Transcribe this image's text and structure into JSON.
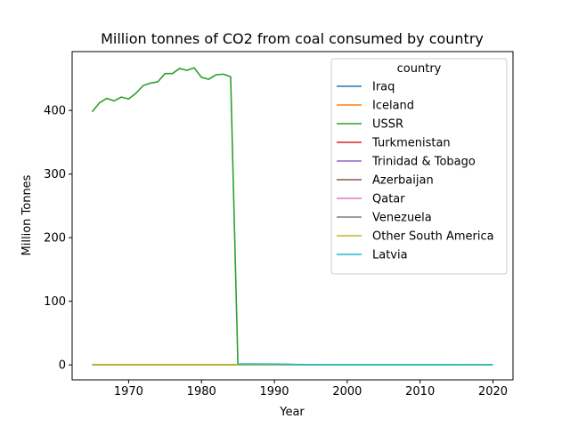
{
  "chart_data": {
    "type": "line",
    "title": "Million tonnes of CO2 from coal consumed by country",
    "xlabel": "Year",
    "ylabel": "Million Tonnes",
    "xlim": [
      1962.25,
      2022.75
    ],
    "ylim": [
      -23.5,
      492.5
    ],
    "xticks": [
      1970,
      1980,
      1990,
      2000,
      2010,
      2020
    ],
    "yticks": [
      0,
      100,
      200,
      300,
      400
    ],
    "grid": false,
    "legend": {
      "title": "country",
      "position": "top-right"
    },
    "x": [
      1965,
      1966,
      1967,
      1968,
      1969,
      1970,
      1971,
      1972,
      1973,
      1974,
      1975,
      1976,
      1977,
      1978,
      1979,
      1980,
      1981,
      1982,
      1983,
      1984,
      1985,
      1986,
      1987,
      1988,
      1989,
      1990,
      1991,
      1992,
      1993,
      1994,
      1995,
      1996,
      1997,
      1998,
      1999,
      2000,
      2001,
      2002,
      2003,
      2004,
      2005,
      2006,
      2007,
      2008,
      2009,
      2010,
      2011,
      2012,
      2013,
      2014,
      2015,
      2016,
      2017,
      2018,
      2019,
      2020
    ],
    "series": [
      {
        "name": "Iraq",
        "color": "#1f77b4",
        "values": [
          0,
          0,
          0,
          0,
          0,
          0,
          0,
          0,
          0,
          0,
          0,
          0,
          0,
          0,
          0,
          0,
          0,
          0,
          0,
          0,
          0,
          0,
          0,
          0,
          0,
          0,
          0,
          0,
          0,
          0,
          0,
          0,
          0,
          0,
          0,
          0,
          0,
          0,
          0,
          0,
          0,
          0,
          0,
          0,
          0,
          0,
          0,
          0,
          0,
          0,
          0,
          0,
          0,
          0,
          0,
          0
        ]
      },
      {
        "name": "Iceland",
        "color": "#ff7f0e",
        "values": [
          0,
          0,
          0,
          0,
          0,
          0,
          0,
          0,
          0,
          0,
          0,
          0,
          0,
          0,
          0,
          0,
          0,
          0,
          0,
          0,
          0,
          0,
          0,
          0,
          0,
          0,
          0,
          0,
          0,
          0,
          0,
          0,
          0,
          0,
          0,
          0,
          0,
          0,
          0,
          0,
          0,
          0,
          0,
          0,
          0,
          0,
          0,
          0,
          0,
          0,
          0,
          0,
          0,
          0,
          0,
          0
        ]
      },
      {
        "name": "USSR",
        "color": "#2ca02c",
        "values": [
          398,
          412,
          419,
          415,
          421,
          418,
          427,
          439,
          443,
          445,
          458,
          458,
          466,
          463,
          467,
          452,
          449,
          456,
          457,
          453,
          0
        ],
        "x": [
          1965,
          1966,
          1967,
          1968,
          1969,
          1970,
          1971,
          1972,
          1973,
          1974,
          1975,
          1976,
          1977,
          1978,
          1979,
          1980,
          1981,
          1982,
          1983,
          1984,
          1985
        ]
      },
      {
        "name": "Turkmenistan",
        "color": "#d62728",
        "values": [
          0,
          0,
          0,
          0,
          0,
          0,
          0,
          0,
          0,
          0,
          0,
          0,
          0,
          0,
          0,
          0,
          0,
          0,
          0,
          0,
          0,
          0,
          0,
          0,
          0,
          0,
          0,
          0,
          0,
          0,
          0,
          0,
          0,
          0,
          0,
          0,
          0,
          0,
          0,
          0,
          0,
          0,
          0,
          0,
          0,
          0,
          0,
          0,
          0,
          0,
          0,
          0,
          0,
          0,
          0,
          0
        ]
      },
      {
        "name": "Trinidad & Tobago",
        "color": "#9467bd",
        "values": [
          0,
          0,
          0,
          0,
          0,
          0,
          0,
          0,
          0,
          0,
          0,
          0,
          0,
          0,
          0,
          0,
          0,
          0,
          0,
          0,
          0,
          0,
          0,
          0,
          0,
          0,
          0,
          0,
          0,
          0,
          0,
          0,
          0,
          0,
          0,
          0,
          0,
          0,
          0,
          0,
          0,
          0,
          0,
          0,
          0,
          0,
          0,
          0,
          0,
          0,
          0,
          0,
          0,
          0,
          0,
          0
        ]
      },
      {
        "name": "Azerbaijan",
        "color": "#8c564b",
        "values": [
          0,
          0,
          0,
          0,
          0,
          0,
          0,
          0,
          0,
          0,
          0,
          0,
          0,
          0,
          0,
          0,
          0,
          0,
          0,
          0,
          0,
          0,
          0,
          0,
          0,
          0,
          0,
          0,
          0,
          0,
          0,
          0,
          0,
          0,
          0,
          0,
          0,
          0,
          0,
          0,
          0,
          0,
          0,
          0,
          0,
          0,
          0,
          0,
          0,
          0,
          0,
          0,
          0,
          0,
          0,
          0
        ]
      },
      {
        "name": "Qatar",
        "color": "#e377c2",
        "values": [
          0,
          0,
          0,
          0,
          0,
          0,
          0,
          0,
          0,
          0,
          0,
          0,
          0,
          0,
          0,
          0,
          0,
          0,
          0,
          0,
          0,
          0,
          0,
          0,
          0,
          0,
          0,
          0,
          0,
          0,
          0,
          0,
          0,
          0,
          0,
          0,
          0,
          0,
          0,
          0,
          0,
          0,
          0,
          0,
          0,
          0,
          0,
          0,
          0,
          0,
          0,
          0,
          0,
          0,
          0,
          0
        ]
      },
      {
        "name": "Venezuela",
        "color": "#7f7f7f",
        "values": [
          0.2,
          0.2,
          0.2,
          0.2,
          0.2,
          0.2,
          0.2,
          0.2,
          0.2,
          0.2,
          0.2,
          0.2,
          0.2,
          0.2,
          0.2,
          0.2,
          0.2,
          0.2,
          0.2,
          0.2,
          0.3,
          0.3,
          0.3,
          0.3,
          0.3,
          0.3,
          0.3,
          0.3,
          0.3,
          0.3,
          0.3,
          0.3,
          0.3,
          0.3,
          0.3,
          0.3,
          0.3,
          0.3,
          0.3,
          0.3,
          0.3,
          0.3,
          0.3,
          0.3,
          0.3,
          0.3,
          0.3,
          0.3,
          0.3,
          0.3,
          0.2,
          0.2,
          0.2,
          0.2,
          0.2,
          0.2
        ]
      },
      {
        "name": "Other South America",
        "color": "#bcbd22",
        "values": [
          0.3,
          0.3,
          0.3,
          0.3,
          0.3,
          0.3,
          0.3,
          0.3,
          0.3,
          0.3,
          0.3,
          0.3,
          0.3,
          0.3,
          0.3,
          0.3,
          0.3,
          0.3,
          0.3,
          0.3,
          0.3,
          0.3,
          0.3,
          0.3,
          0.3,
          0.3,
          0.3,
          0.3,
          0.3,
          0.3,
          0.3,
          0.3,
          0.3,
          0.3,
          0.3,
          0.3,
          0.3,
          0.3,
          0.3,
          0.3,
          0.3,
          0.3,
          0.3,
          0.3,
          0.3,
          0.3,
          0.3,
          0.3,
          0.3,
          0.3,
          0.3,
          0.3,
          0.3,
          0.3,
          0.3,
          0.3
        ]
      },
      {
        "name": "Latvia",
        "color": "#17becf",
        "values": [
          null,
          null,
          null,
          null,
          null,
          null,
          null,
          null,
          null,
          null,
          null,
          null,
          null,
          null,
          null,
          null,
          null,
          null,
          null,
          null,
          1.5,
          1.6,
          1.6,
          1.5,
          1.5,
          1.4,
          1.2,
          1.0,
          0.8,
          0.6,
          0.5,
          0.5,
          0.4,
          0.3,
          0.3,
          0.2,
          0.2,
          0.2,
          0.2,
          0.2,
          0.2,
          0.2,
          0.2,
          0.2,
          0.2,
          0.2,
          0.2,
          0.2,
          0.2,
          0.2,
          0.1,
          0.1,
          0.1,
          0.1,
          0.1,
          0.1
        ]
      }
    ]
  }
}
